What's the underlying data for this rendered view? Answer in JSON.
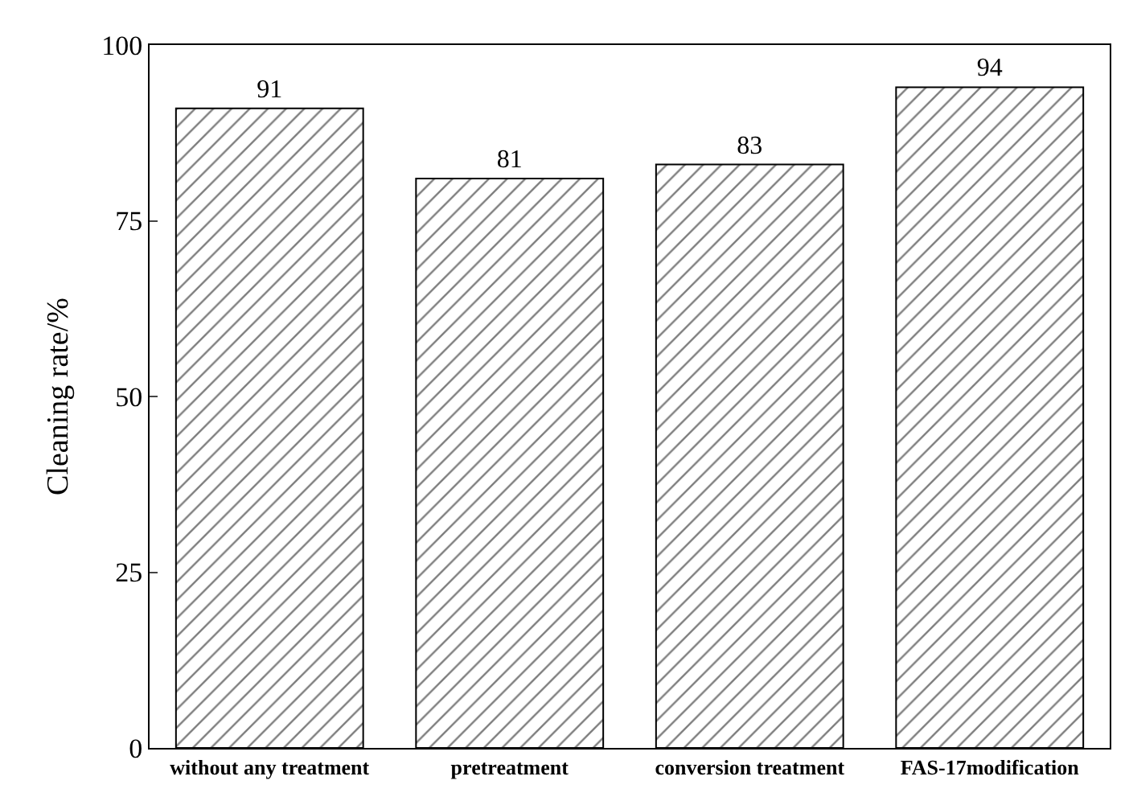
{
  "chart_data": {
    "type": "bar",
    "ylabel": "Cleaning rate/%",
    "categories": [
      "without any treatment",
      "pretreatment",
      "conversion treatment",
      "FAS-17modification"
    ],
    "values": [
      91,
      81,
      83,
      94
    ],
    "color": "#000000",
    "ylim": [
      0,
      100
    ],
    "yticks": [
      0,
      25,
      50,
      75,
      100
    ],
    "data_labels": true
  }
}
